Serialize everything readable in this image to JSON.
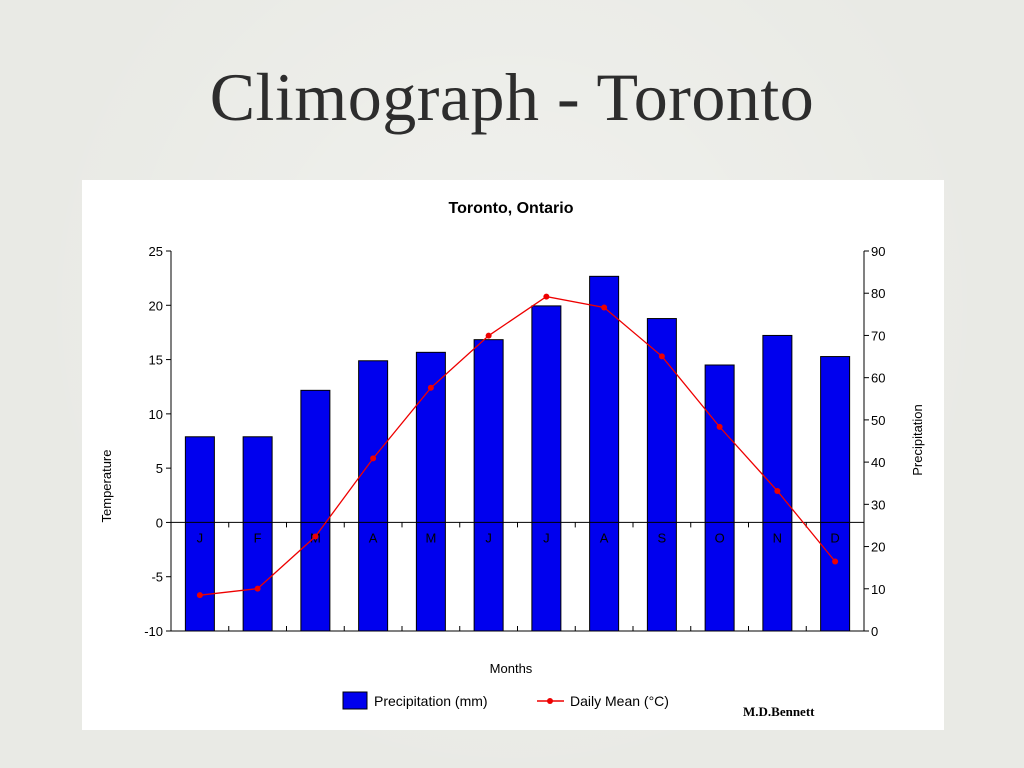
{
  "slide": {
    "title": "Climograph - Toronto"
  },
  "chart_data": {
    "type": "bar",
    "title": "Toronto, Ontario",
    "xlabel": "Months",
    "ylabel": "Temperature",
    "y2label": "Precipitation",
    "categories": [
      "J",
      "F",
      "M",
      "A",
      "M",
      "J",
      "J",
      "A",
      "S",
      "O",
      "N",
      "D"
    ],
    "ylim": [
      -10,
      25
    ],
    "y2lim": [
      0,
      90
    ],
    "yticks": [
      "25",
      "20",
      "15",
      "10",
      "5",
      "0",
      "-5",
      "-10"
    ],
    "y2ticks": [
      "90",
      "80",
      "70",
      "60",
      "50",
      "40",
      "30",
      "20",
      "10",
      "0"
    ],
    "series": [
      {
        "name": "Precipitation (mm)",
        "type": "bar",
        "axis": "right",
        "color": "#0000ee",
        "values": [
          46,
          46,
          57,
          64,
          66,
          69,
          77,
          84,
          74,
          63,
          70,
          65
        ]
      },
      {
        "name": "Daily Mean (°C)",
        "type": "line",
        "axis": "left",
        "color": "#ee0000",
        "values": [
          -6.7,
          -6.1,
          -1.3,
          5.9,
          12.4,
          17.2,
          20.8,
          19.8,
          15.3,
          8.8,
          2.9,
          -3.6
        ]
      }
    ],
    "legend_position": "bottom",
    "grid": false
  },
  "credit": "M.D.Bennett"
}
